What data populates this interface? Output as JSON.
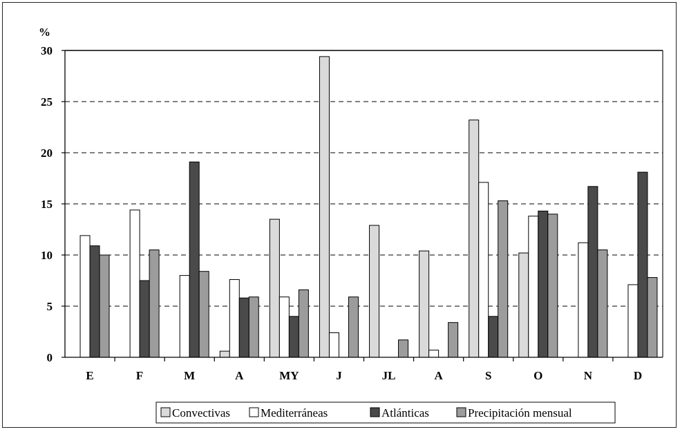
{
  "chart_data": {
    "type": "bar",
    "title": "",
    "xlabel": "",
    "ylabel": "%",
    "ylim": [
      0,
      30
    ],
    "yticks": [
      0,
      5,
      10,
      15,
      20,
      25,
      30
    ],
    "grid": "horizontal dashed",
    "legend_position": "bottom-center",
    "categories": [
      "E",
      "F",
      "M",
      "A",
      "MY",
      "J",
      "JL",
      "A",
      "S",
      "O",
      "N",
      "D"
    ],
    "series": [
      {
        "name": "Convectivas",
        "color": "#dadada",
        "values": [
          0,
          0,
          0,
          0.6,
          13.5,
          29.4,
          12.9,
          10.4,
          23.2,
          10.2,
          0,
          0
        ]
      },
      {
        "name": "Mediterráneas",
        "color": "#ffffff",
        "values": [
          11.9,
          14.4,
          8.0,
          7.6,
          5.9,
          2.4,
          0,
          0.7,
          17.1,
          13.8,
          11.2,
          7.1
        ]
      },
      {
        "name": "Atlánticas",
        "color": "#4a4a4a",
        "values": [
          10.9,
          7.5,
          19.1,
          5.8,
          4.0,
          0,
          0,
          0,
          4.0,
          14.3,
          16.7,
          18.1
        ]
      },
      {
        "name": "Precipitación mensual",
        "color": "#9c9c9c",
        "values": [
          10.0,
          10.5,
          8.4,
          5.9,
          6.6,
          5.9,
          1.7,
          3.4,
          15.3,
          14.0,
          10.5,
          7.8
        ]
      }
    ]
  }
}
